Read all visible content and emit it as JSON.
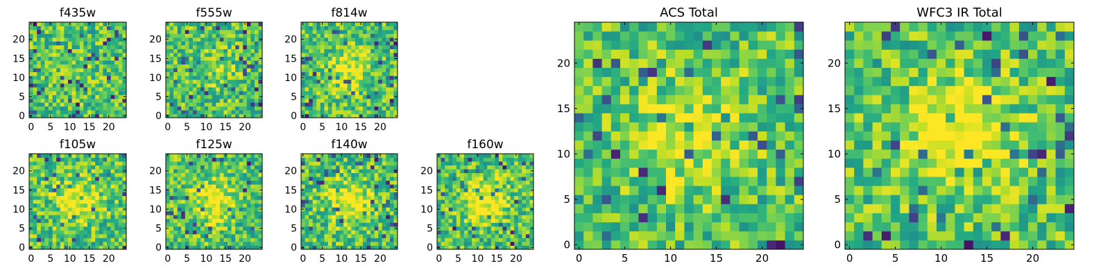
{
  "chart_data": [
    {
      "type": "heatmap",
      "title": "f435w",
      "size": "small",
      "grid_size": 25,
      "colormap": "viridis",
      "seed": 11,
      "center_strength": 0.04,
      "xticks": [
        0,
        5,
        10,
        15,
        20
      ],
      "yticks": [
        0,
        5,
        10,
        15,
        20
      ],
      "xlim": [
        -0.5,
        24.5
      ],
      "ylim": [
        -0.5,
        24.5
      ]
    },
    {
      "type": "heatmap",
      "title": "f555w",
      "size": "small",
      "grid_size": 25,
      "colormap": "viridis",
      "seed": 23,
      "center_strength": 0.12,
      "xticks": [
        0,
        5,
        10,
        15,
        20
      ],
      "yticks": [
        0,
        5,
        10,
        15,
        20
      ],
      "xlim": [
        -0.5,
        24.5
      ],
      "ylim": [
        -0.5,
        24.5
      ]
    },
    {
      "type": "heatmap",
      "title": "f814w",
      "size": "small",
      "grid_size": 25,
      "colormap": "viridis",
      "seed": 37,
      "center_strength": 0.22,
      "xticks": [
        0,
        5,
        10,
        15,
        20
      ],
      "yticks": [
        0,
        5,
        10,
        15,
        20
      ],
      "xlim": [
        -0.5,
        24.5
      ],
      "ylim": [
        -0.5,
        24.5
      ]
    },
    {
      "type": "heatmap",
      "title": "f105w",
      "size": "small",
      "grid_size": 25,
      "colormap": "viridis",
      "seed": 41,
      "center_strength": 0.3,
      "xticks": [
        0,
        5,
        10,
        15,
        20
      ],
      "yticks": [
        0,
        5,
        10,
        15,
        20
      ],
      "xlim": [
        -0.5,
        24.5
      ],
      "ylim": [
        -0.5,
        24.5
      ]
    },
    {
      "type": "heatmap",
      "title": "f125w",
      "size": "small",
      "grid_size": 25,
      "colormap": "viridis",
      "seed": 53,
      "center_strength": 0.3,
      "xticks": [
        0,
        5,
        10,
        15,
        20
      ],
      "yticks": [
        0,
        5,
        10,
        15,
        20
      ],
      "xlim": [
        -0.5,
        24.5
      ],
      "ylim": [
        -0.5,
        24.5
      ]
    },
    {
      "type": "heatmap",
      "title": "f140w",
      "size": "small",
      "grid_size": 25,
      "colormap": "viridis",
      "seed": 67,
      "center_strength": 0.3,
      "xticks": [
        0,
        5,
        10,
        15,
        20
      ],
      "yticks": [
        0,
        5,
        10,
        15,
        20
      ],
      "xlim": [
        -0.5,
        24.5
      ],
      "ylim": [
        -0.5,
        24.5
      ]
    },
    {
      "type": "heatmap",
      "title": "f160w",
      "size": "small",
      "grid_size": 25,
      "colormap": "viridis",
      "seed": 71,
      "center_strength": 0.35,
      "xticks": [
        0,
        5,
        10,
        15,
        20
      ],
      "yticks": [
        0,
        5,
        10,
        15,
        20
      ],
      "xlim": [
        -0.5,
        24.5
      ],
      "ylim": [
        -0.5,
        24.5
      ]
    },
    {
      "type": "heatmap",
      "title": "ACS Total",
      "size": "large",
      "grid_size": 25,
      "colormap": "viridis",
      "seed": 83,
      "center_strength": 0.25,
      "xticks": [
        0,
        5,
        10,
        15,
        20
      ],
      "yticks": [
        0,
        5,
        10,
        15,
        20
      ],
      "xlim": [
        -0.5,
        24.5
      ],
      "ylim": [
        -0.5,
        24.5
      ]
    },
    {
      "type": "heatmap",
      "title": "WFC3 IR Total",
      "size": "large",
      "grid_size": 25,
      "colormap": "viridis",
      "seed": 97,
      "center_strength": 0.4,
      "xticks": [
        0,
        5,
        10,
        15,
        20
      ],
      "yticks": [
        0,
        5,
        10,
        15,
        20
      ],
      "xlim": [
        -0.5,
        24.5
      ],
      "ylim": [
        -0.5,
        24.5
      ]
    }
  ]
}
